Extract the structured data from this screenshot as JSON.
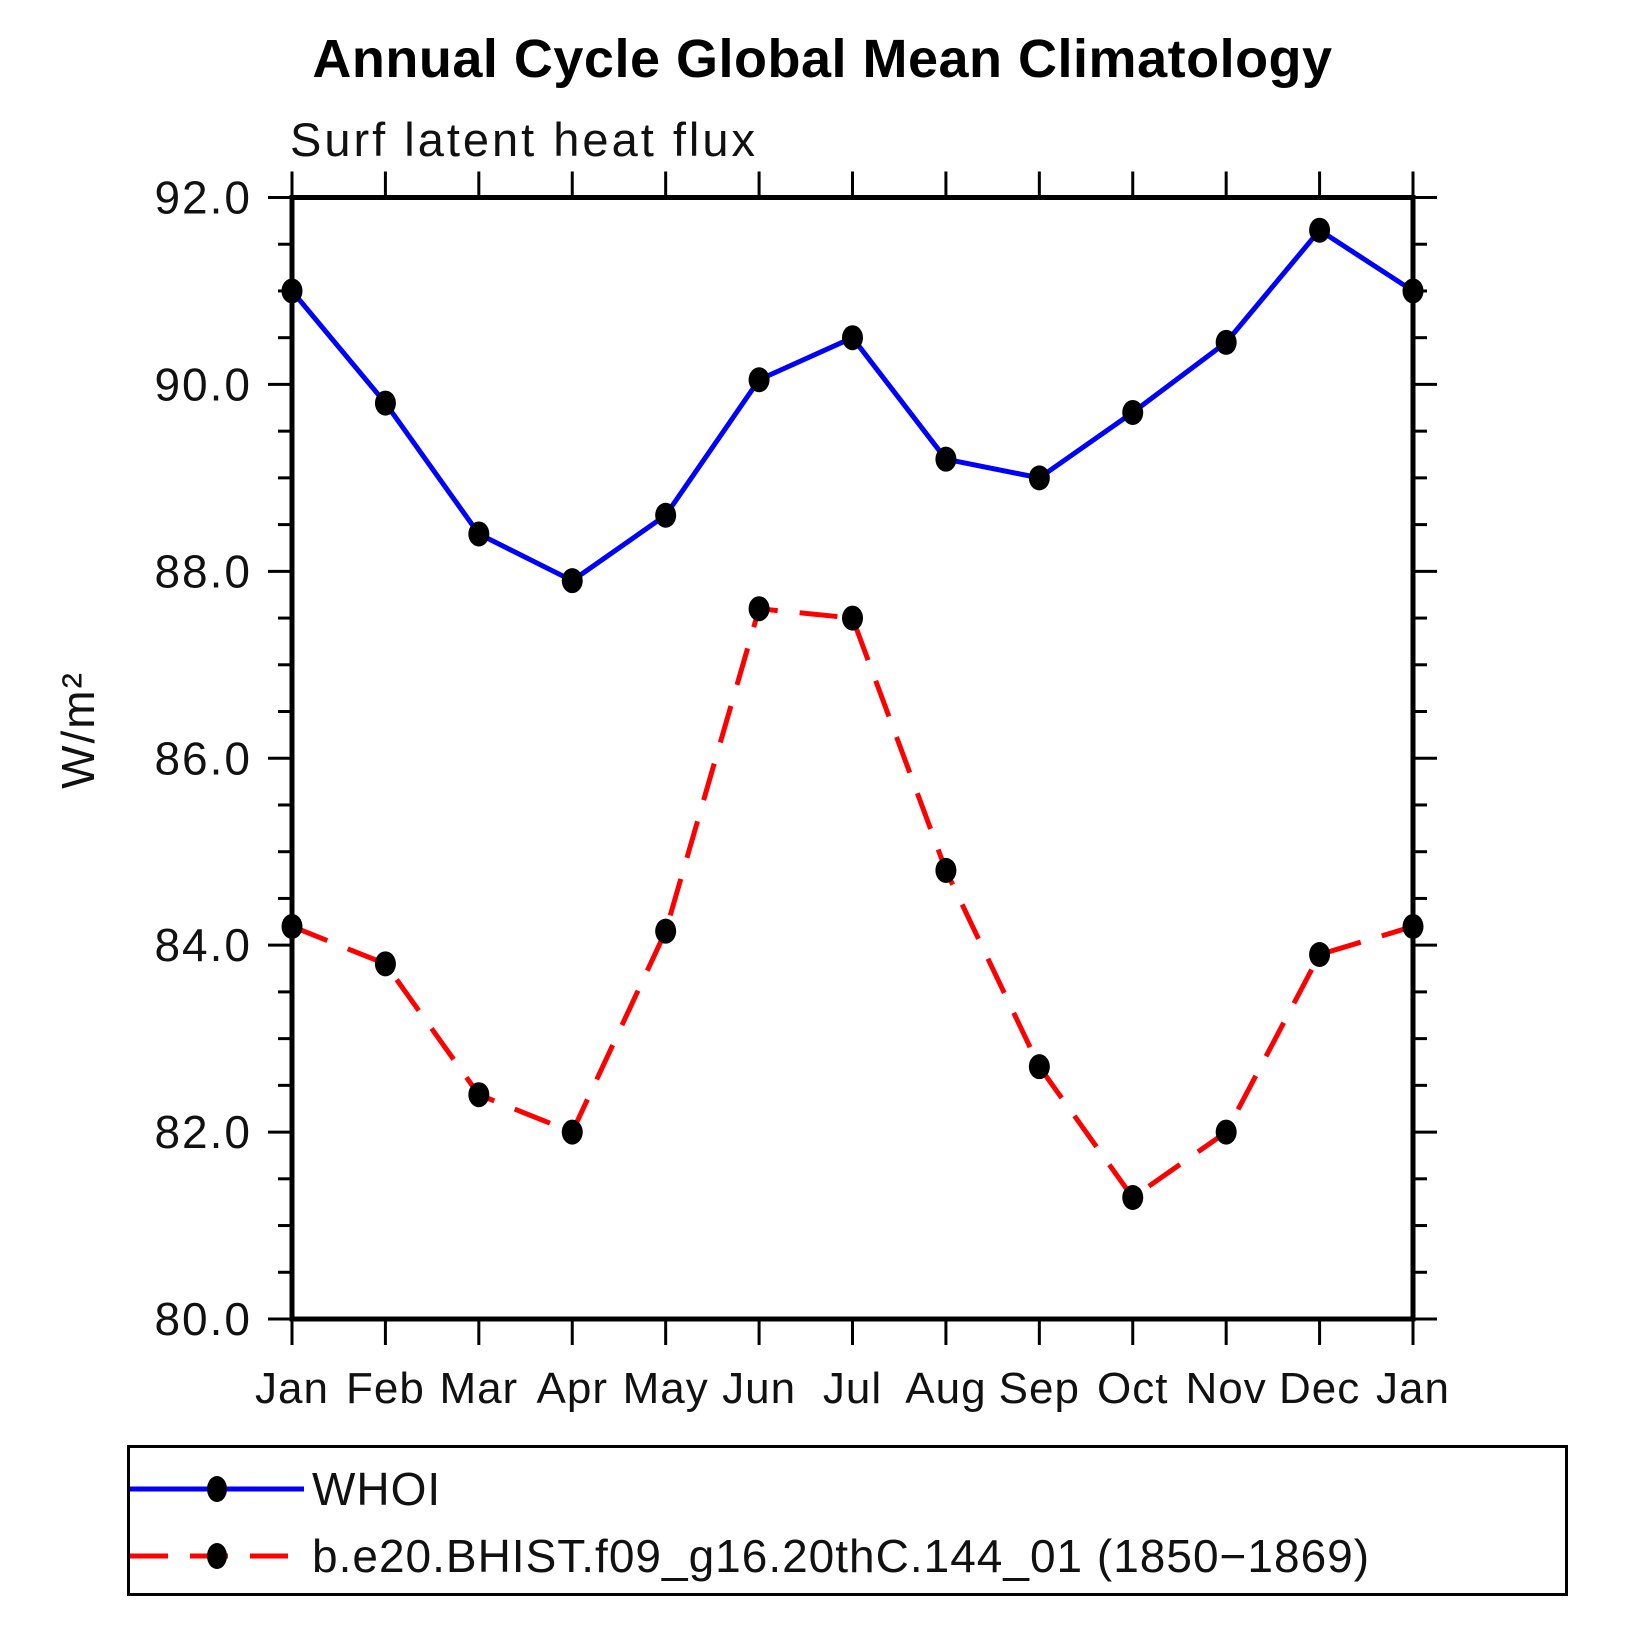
{
  "header": {
    "title": "Annual Cycle Global Mean Climatology",
    "subtitle": "Surf latent heat flux"
  },
  "chart_data": {
    "type": "line",
    "title": "Annual Cycle Global Mean Climatology",
    "subtitle": "Surf latent heat flux",
    "ylabel": "W/m²",
    "xlabel": "",
    "categories": [
      "Jan",
      "Feb",
      "Mar",
      "Apr",
      "May",
      "Jun",
      "Jul",
      "Aug",
      "Sep",
      "Oct",
      "Nov",
      "Dec",
      "Jan"
    ],
    "series": [
      {
        "name": "WHOI",
        "color": "#0000ff",
        "line_style": "solid",
        "marker": "filled-circle",
        "marker_color": "#000000",
        "values": [
          91.0,
          89.8,
          88.4,
          87.9,
          88.6,
          90.05,
          90.5,
          89.2,
          89.0,
          89.7,
          90.45,
          91.65,
          91.0
        ]
      },
      {
        "name": "b.e20.BHIST.f09_g16.20thC.144_01 (1850−1869)",
        "color": "#ff0000",
        "line_style": "dashed",
        "marker": "filled-circle",
        "marker_color": "#000000",
        "values": [
          84.2,
          83.8,
          82.4,
          82.0,
          84.15,
          87.6,
          87.5,
          84.8,
          82.7,
          81.3,
          82.0,
          83.9,
          84.2
        ]
      }
    ],
    "ylim": [
      80.0,
      92.0
    ],
    "ytick_values": [
      92.0,
      90.0,
      88.0,
      86.0,
      84.0,
      82.0,
      80.0
    ],
    "ytick_labels": [
      "92.0",
      "90.0",
      "88.0",
      "86.0",
      "84.0",
      "82.0",
      "80.0"
    ],
    "minor_tick_step": 0.5,
    "grid": false,
    "legend_position": "bottom"
  }
}
